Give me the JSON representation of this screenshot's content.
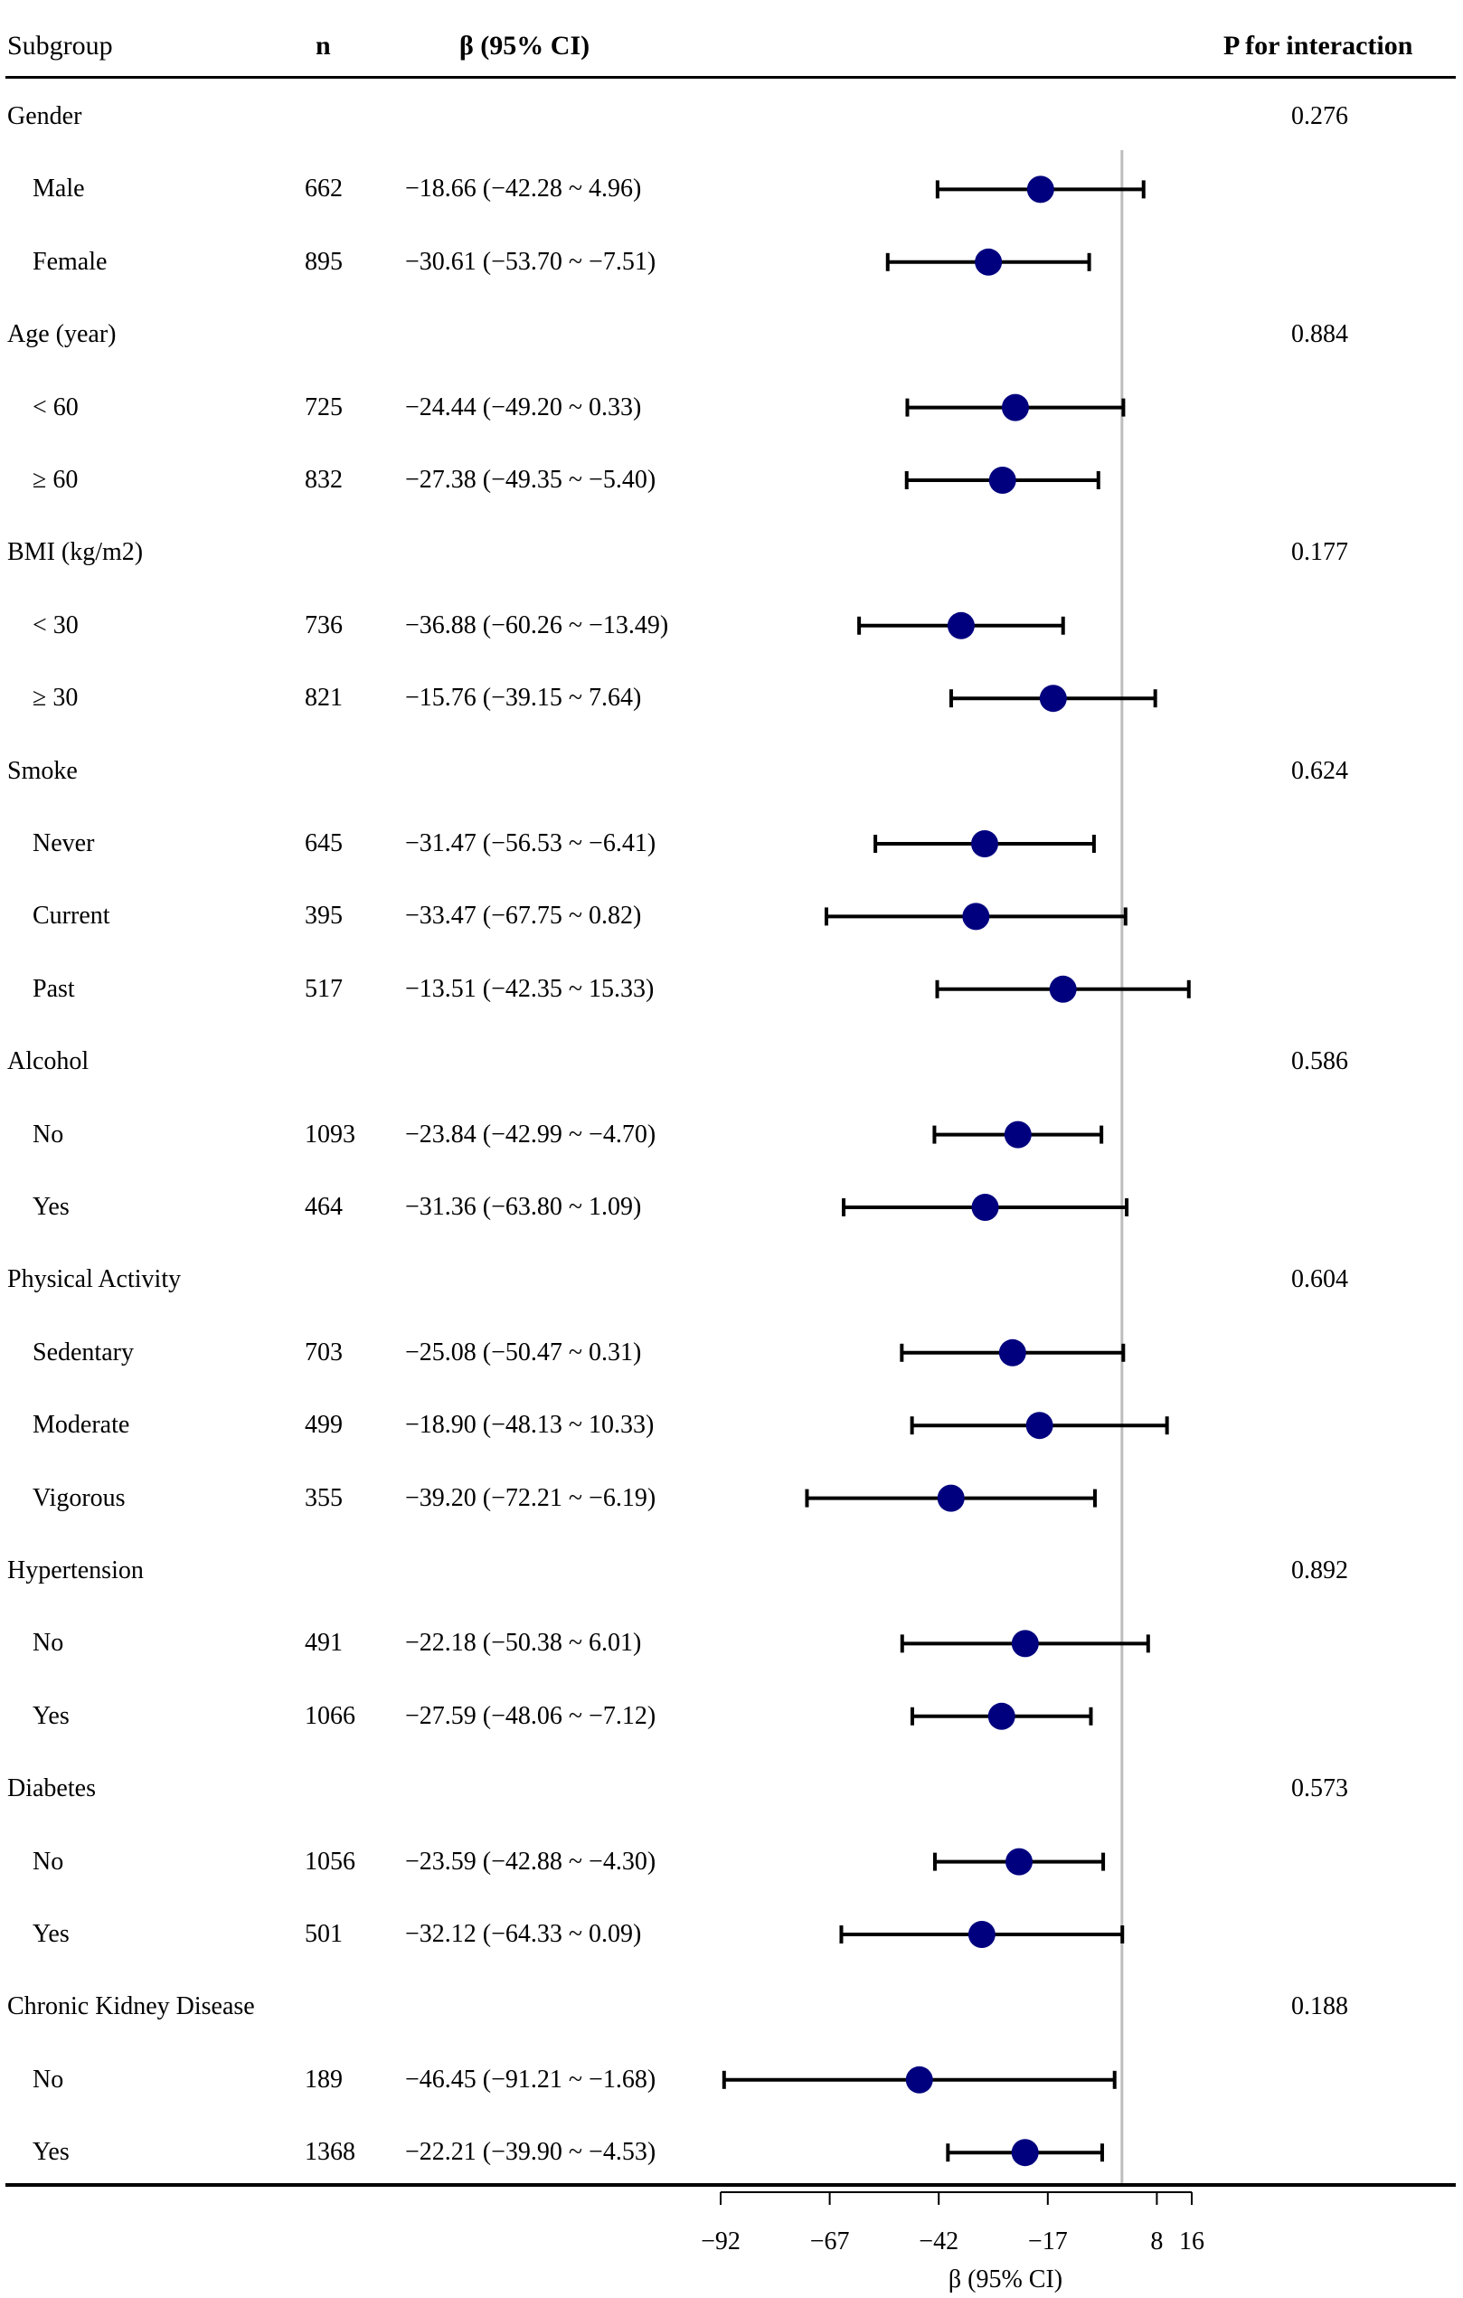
{
  "header": {
    "subgroup": "Subgroup",
    "n": "n",
    "beta": "β (95% CI)",
    "p": "P for interaction"
  },
  "rows": [
    {
      "kind": "group",
      "label": "Gender",
      "p": "0.276"
    },
    {
      "kind": "item",
      "label": "Male",
      "n": "662",
      "ci_text": "−18.66 (−42.28 ~ 4.96)",
      "est": -18.66,
      "lo": -42.28,
      "hi": 4.96
    },
    {
      "kind": "item",
      "label": "Female",
      "n": "895",
      "ci_text": "−30.61 (−53.70 ~ −7.51)",
      "est": -30.61,
      "lo": -53.7,
      "hi": -7.51
    },
    {
      "kind": "group",
      "label": "Age (year)",
      "p": "0.884"
    },
    {
      "kind": "item",
      "label": "< 60",
      "n": "725",
      "ci_text": "−24.44 (−49.20 ~ 0.33)",
      "est": -24.44,
      "lo": -49.2,
      "hi": 0.33
    },
    {
      "kind": "item",
      "label": "≥ 60",
      "n": "832",
      "ci_text": "−27.38 (−49.35 ~ −5.40)",
      "est": -27.38,
      "lo": -49.35,
      "hi": -5.4
    },
    {
      "kind": "group",
      "label": "BMI (kg/m2)",
      "p": "0.177"
    },
    {
      "kind": "item",
      "label": "< 30",
      "n": "736",
      "ci_text": "−36.88 (−60.26 ~ −13.49)",
      "est": -36.88,
      "lo": -60.26,
      "hi": -13.49
    },
    {
      "kind": "item",
      "label": "≥ 30",
      "n": "821",
      "ci_text": "−15.76 (−39.15 ~ 7.64)",
      "est": -15.76,
      "lo": -39.15,
      "hi": 7.64
    },
    {
      "kind": "group",
      "label": "Smoke",
      "p": "0.624"
    },
    {
      "kind": "item",
      "label": "Never",
      "n": "645",
      "ci_text": "−31.47 (−56.53 ~ −6.41)",
      "est": -31.47,
      "lo": -56.53,
      "hi": -6.41
    },
    {
      "kind": "item",
      "label": "Current",
      "n": "395",
      "ci_text": "−33.47 (−67.75 ~ 0.82)",
      "est": -33.47,
      "lo": -67.75,
      "hi": 0.82
    },
    {
      "kind": "item",
      "label": "Past",
      "n": "517",
      "ci_text": "−13.51 (−42.35 ~ 15.33)",
      "est": -13.51,
      "lo": -42.35,
      "hi": 15.33
    },
    {
      "kind": "group",
      "label": "Alcohol",
      "p": "0.586"
    },
    {
      "kind": "item",
      "label": "No",
      "n": "1093",
      "ci_text": "−23.84 (−42.99 ~ −4.70)",
      "est": -23.84,
      "lo": -42.99,
      "hi": -4.7
    },
    {
      "kind": "item",
      "label": "Yes",
      "n": "464",
      "ci_text": "−31.36 (−63.80 ~ 1.09)",
      "est": -31.36,
      "lo": -63.8,
      "hi": 1.09
    },
    {
      "kind": "group",
      "label": "Physical Activity",
      "p": "0.604"
    },
    {
      "kind": "item",
      "label": "Sedentary",
      "n": "703",
      "ci_text": "−25.08 (−50.47 ~ 0.31)",
      "est": -25.08,
      "lo": -50.47,
      "hi": 0.31
    },
    {
      "kind": "item",
      "label": "Moderate",
      "n": "499",
      "ci_text": "−18.90 (−48.13 ~ 10.33)",
      "est": -18.9,
      "lo": -48.13,
      "hi": 10.33
    },
    {
      "kind": "item",
      "label": "Vigorous",
      "n": "355",
      "ci_text": "−39.20 (−72.21 ~ −6.19)",
      "est": -39.2,
      "lo": -72.21,
      "hi": -6.19
    },
    {
      "kind": "group",
      "label": "Hypertension",
      "p": "0.892"
    },
    {
      "kind": "item",
      "label": "No",
      "n": "491",
      "ci_text": "−22.18 (−50.38 ~ 6.01)",
      "est": -22.18,
      "lo": -50.38,
      "hi": 6.01
    },
    {
      "kind": "item",
      "label": "Yes",
      "n": "1066",
      "ci_text": "−27.59 (−48.06 ~ −7.12)",
      "est": -27.59,
      "lo": -48.06,
      "hi": -7.12
    },
    {
      "kind": "group",
      "label": "Diabetes",
      "p": "0.573"
    },
    {
      "kind": "item",
      "label": "No",
      "n": "1056",
      "ci_text": "−23.59 (−42.88 ~ −4.30)",
      "est": -23.59,
      "lo": -42.88,
      "hi": -4.3
    },
    {
      "kind": "item",
      "label": "Yes",
      "n": "501",
      "ci_text": "−32.12 (−64.33 ~ 0.09)",
      "est": -32.12,
      "lo": -64.33,
      "hi": 0.09
    },
    {
      "kind": "group",
      "label": "Chronic Kidney Disease",
      "p": "0.188"
    },
    {
      "kind": "item",
      "label": "No",
      "n": "189",
      "ci_text": "−46.45 (−91.21 ~ −1.68)",
      "est": -46.45,
      "lo": -91.21,
      "hi": -1.68
    },
    {
      "kind": "item",
      "label": "Yes",
      "n": "1368",
      "ci_text": "−22.21 (−39.90 ~ −4.53)",
      "est": -22.21,
      "lo": -39.9,
      "hi": -4.53
    }
  ],
  "chart_data": {
    "type": "forest",
    "xlabel": "β (95% CI)",
    "xlim": [
      -92,
      16
    ],
    "ticks": [
      -92,
      -67,
      -42,
      -17,
      8,
      16
    ],
    "tick_labels": [
      "−92",
      "−67",
      "−42",
      "−17",
      "8",
      "16"
    ],
    "reference_line": 0,
    "marker_color": "#00007f",
    "line_color": "#000000",
    "ref_line_color": "#bdbdbd"
  }
}
